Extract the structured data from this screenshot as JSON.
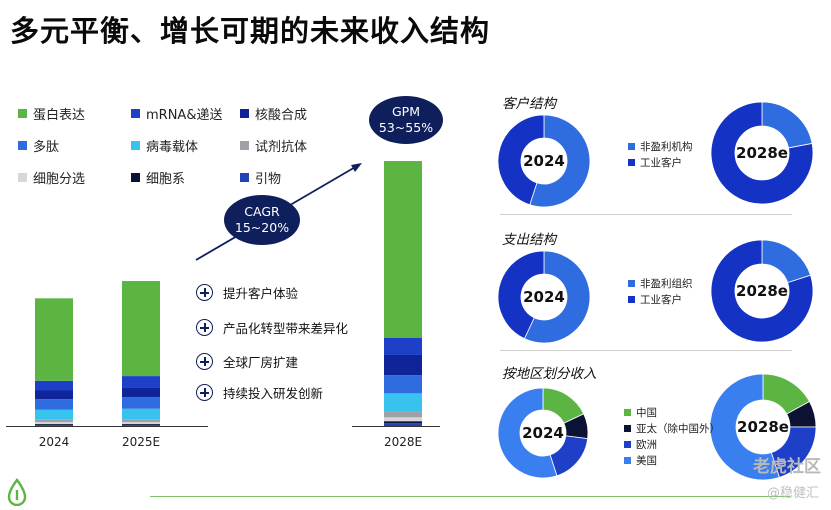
{
  "title": "多元平衡、增长可期的未来收入结构",
  "legend": [
    {
      "label": "蛋白表达",
      "color": "#5cb443"
    },
    {
      "label": "mRNA&递送",
      "color": "#1e3fc7"
    },
    {
      "label": "核酸合成",
      "color": "#10249a"
    },
    {
      "label": "多肽",
      "color": "#2f6ce0"
    },
    {
      "label": "病毒载体",
      "color": "#38c3ee"
    },
    {
      "label": "试剂抗体",
      "color": "#9ea1a6"
    },
    {
      "label": "细胞分选",
      "color": "#d5d7da"
    },
    {
      "label": "细胞系",
      "color": "#0b1233"
    },
    {
      "label": "引物",
      "color": "#2143b5"
    }
  ],
  "bubbles": {
    "cagr": {
      "line1": "CAGR",
      "line2": "15~20%"
    },
    "gpm": {
      "line1": "GPM",
      "line2": "53~55%"
    }
  },
  "initiatives": [
    "提升客户体验",
    "产品化转型带来差异化",
    "全球厂房扩建",
    "持续投入研发创新"
  ],
  "right": {
    "customer": {
      "title": "客户结构",
      "legend": [
        {
          "label": "非盈利机构",
          "color": "#2f6ce0"
        },
        {
          "label": "工业客户",
          "color": "#1432c4"
        }
      ],
      "pies": [
        {
          "label": "2024",
          "values": [
            55,
            45
          ],
          "colors": [
            "#2f6ce0",
            "#1432c4"
          ]
        },
        {
          "label": "2028e",
          "values": [
            22,
            78
          ],
          "colors": [
            "#2f6ce0",
            "#1432c4"
          ]
        }
      ]
    },
    "expense": {
      "title": "支出结构",
      "legend": [
        {
          "label": "非盈利组织",
          "color": "#2f6ce0"
        },
        {
          "label": "工业客户",
          "color": "#1432c4"
        }
      ],
      "pies": [
        {
          "label": "2024",
          "values": [
            57,
            43
          ],
          "colors": [
            "#2f6ce0",
            "#1432c4"
          ]
        },
        {
          "label": "2028e",
          "values": [
            20,
            80
          ],
          "colors": [
            "#2f6ce0",
            "#1432c4"
          ]
        }
      ]
    },
    "region": {
      "title": "按地区划分收入",
      "legend": [
        {
          "label": "中国",
          "color": "#5cb443"
        },
        {
          "label": "亚太（除中国外）",
          "color": "#0b1233"
        },
        {
          "label": "欧洲",
          "color": "#1e3fc7"
        },
        {
          "label": "美国",
          "color": "#3a7ff0"
        }
      ],
      "pies": [
        {
          "label": "2024",
          "values": [
            18,
            9,
            18,
            55
          ],
          "colors": [
            "#5cb443",
            "#0b1233",
            "#1e3fc7",
            "#3a7ff0"
          ]
        },
        {
          "label": "2028e",
          "values": [
            17,
            8,
            20,
            55
          ],
          "colors": [
            "#5cb443",
            "#0b1233",
            "#1e3fc7",
            "#3a7ff0"
          ]
        }
      ]
    }
  },
  "watermark": {
    "line1": "老虎社区",
    "line2": "@稳健汇"
  },
  "chart_data": {
    "type": "bar",
    "stacked": true,
    "categories": [
      "2024",
      "2025E",
      "2028E"
    ],
    "series": [
      {
        "name": "引物",
        "values": [
          1,
          1,
          3
        ]
      },
      {
        "name": "细胞系",
        "values": [
          1,
          1,
          2
        ]
      },
      {
        "name": "细胞分选",
        "values": [
          2,
          2,
          4
        ]
      },
      {
        "name": "试剂抗体",
        "values": [
          3,
          3,
          6
        ]
      },
      {
        "name": "病毒载体",
        "values": [
          10,
          11,
          19
        ]
      },
      {
        "name": "多肽",
        "values": [
          11,
          12,
          19
        ]
      },
      {
        "name": "核酸合成",
        "values": [
          9,
          10,
          21
        ]
      },
      {
        "name": "mRNA&递送",
        "values": [
          10,
          12,
          18
        ]
      },
      {
        "name": "蛋白表达",
        "values": [
          86,
          99,
          184
        ]
      }
    ]
  }
}
